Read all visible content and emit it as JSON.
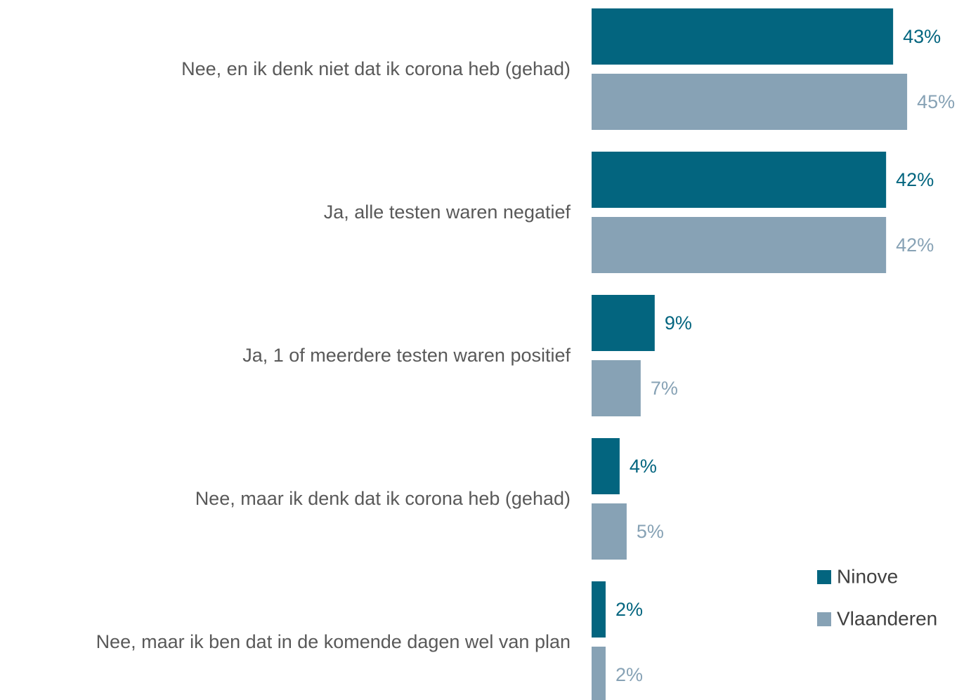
{
  "chart_data": {
    "type": "barh",
    "categories": [
      "Nee, en ik denk niet dat ik corona heb (gehad)",
      "Ja, alle testen waren negatief",
      "Ja, 1 of meerdere testen waren positief",
      "Nee, maar ik denk dat ik corona heb (gehad)",
      "Nee, maar ik ben dat in de komende dagen wel van plan"
    ],
    "series": [
      {
        "name": "Ninove",
        "color": "#03657f",
        "values": [
          43,
          42,
          9,
          4,
          2
        ],
        "value_labels": [
          "43%",
          "42%",
          "9%",
          "4%",
          "2%"
        ]
      },
      {
        "name": "Vlaanderen",
        "color": "#87a2b5",
        "values": [
          45,
          42,
          7,
          5,
          2
        ],
        "value_labels": [
          "45%",
          "42%",
          "7%",
          "5%",
          "2%"
        ]
      }
    ],
    "legend": "bottom-right"
  }
}
